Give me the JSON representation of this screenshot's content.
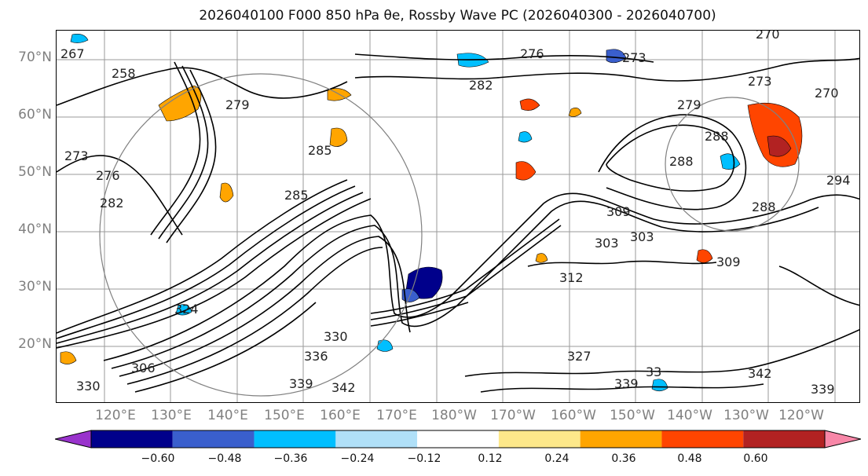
{
  "title": "2026040100 F000 850 hPa θe, Rossby Wave PC (2026040300 - 2026040700)",
  "lat_labels": [
    "70°N",
    "60°N",
    "50°N",
    "40°N",
    "30°N",
    "20°N"
  ],
  "lon_labels": [
    "120°E",
    "130°E",
    "140°E",
    "150°E",
    "160°E",
    "170°E",
    "180°W",
    "170°W",
    "160°W",
    "150°W",
    "140°W",
    "130°W",
    "120°W"
  ],
  "colorbar": {
    "ticks": [
      "−0.60",
      "−0.48",
      "−0.36",
      "−0.24",
      "−0.12",
      "0.12",
      "0.24",
      "0.36",
      "0.48",
      "0.60"
    ],
    "colors": [
      "#9933cc",
      "#00008b",
      "#3a5fcd",
      "#00bfff",
      "#b0e0f8",
      "#ffffff",
      "#fde88a",
      "#ffa500",
      "#ff4500",
      "#b22222",
      "#f887a8"
    ]
  },
  "contour_labels": [
    "267",
    "258",
    "279",
    "282",
    "276",
    "273",
    "270",
    "273",
    "270",
    "279",
    "288",
    "288",
    "294",
    "309",
    "303",
    "303",
    "309",
    "312",
    "285",
    "288",
    "273",
    "276",
    "282",
    "285",
    "324",
    "330",
    "336",
    "339",
    "342",
    "327",
    "330",
    "339",
    "342",
    "339",
    "306",
    "33"
  ]
}
